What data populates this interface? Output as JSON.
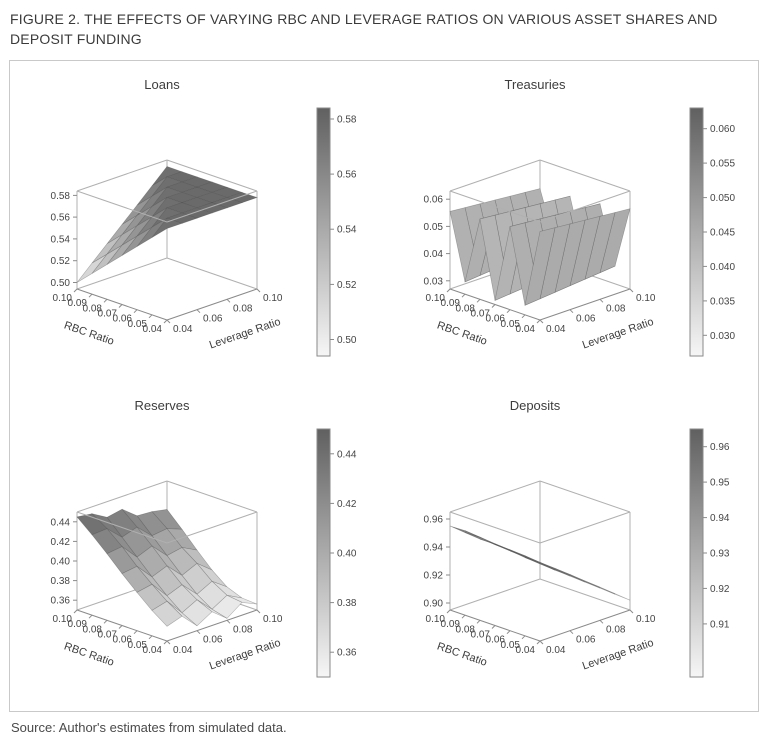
{
  "figure": {
    "title_line1": "FIGURE 2. THE EFFECTS OF VARYING RBC AND LEVERAGE RATIOS ON VARIOUS ASSET SHARES AND",
    "title_line2": "DEPOSIT FUNDING",
    "source": "Source: Author's estimates from simulated data."
  },
  "chart_data": [
    {
      "type": "surface3d",
      "title": "Loans",
      "xlabel": "RBC Ratio",
      "ylabel": "Leverage Ratio",
      "xticks": [
        0.04,
        0.05,
        0.06,
        0.07,
        0.08,
        0.09,
        0.1
      ],
      "yticks": [
        0.04,
        0.06,
        0.08,
        0.1
      ],
      "xlim": [
        0.04,
        0.1
      ],
      "ylim": [
        0.04,
        0.1
      ],
      "zlim": [
        0.494,
        0.584
      ],
      "zticks": [
        0.5,
        0.52,
        0.54,
        0.56,
        0.58
      ],
      "ztick_decimals": 2,
      "colorbar_ticks": [
        0.5,
        0.52,
        0.54,
        0.56,
        0.58
      ],
      "colorbar_decimals": 2,
      "x_rbc": [
        0.04,
        0.05,
        0.06,
        0.07,
        0.08,
        0.09,
        0.1
      ],
      "y_leverage": [
        0.04,
        0.05,
        0.06,
        0.07,
        0.08,
        0.09,
        0.1
      ],
      "z": [
        [
          0.578,
          0.578,
          0.578,
          0.578,
          0.578,
          0.578,
          0.578
        ],
        [
          0.565,
          0.578,
          0.578,
          0.578,
          0.578,
          0.578,
          0.578
        ],
        [
          0.552,
          0.565,
          0.578,
          0.578,
          0.578,
          0.578,
          0.578
        ],
        [
          0.539,
          0.552,
          0.565,
          0.578,
          0.578,
          0.578,
          0.578
        ],
        [
          0.526,
          0.539,
          0.552,
          0.565,
          0.578,
          0.578,
          0.578
        ],
        [
          0.513,
          0.526,
          0.539,
          0.552,
          0.565,
          0.578,
          0.578
        ],
        [
          0.5,
          0.513,
          0.526,
          0.539,
          0.552,
          0.565,
          0.578
        ]
      ]
    },
    {
      "type": "surface3d",
      "title": "Treasuries",
      "xlabel": "RBC Ratio",
      "ylabel": "Leverage Ratio",
      "xticks": [
        0.04,
        0.05,
        0.06,
        0.07,
        0.08,
        0.09,
        0.1
      ],
      "yticks": [
        0.04,
        0.06,
        0.08,
        0.1
      ],
      "xlim": [
        0.04,
        0.1
      ],
      "ylim": [
        0.04,
        0.1
      ],
      "zlim": [
        0.027,
        0.063
      ],
      "zticks": [
        0.03,
        0.04,
        0.05,
        0.06
      ],
      "ztick_decimals": 2,
      "colorbar_ticks": [
        0.03,
        0.035,
        0.04,
        0.045,
        0.05,
        0.055,
        0.06
      ],
      "colorbar_decimals": 3,
      "x_rbc": [
        0.04,
        0.05,
        0.06,
        0.07,
        0.08,
        0.09,
        0.1
      ],
      "y_leverage": [
        0.04,
        0.05,
        0.06,
        0.07,
        0.08,
        0.09,
        0.1
      ],
      "z": [
        [
          0.0595,
          0.059,
          0.0585,
          0.058,
          0.0575,
          0.057,
          0.0565
        ],
        [
          0.0305,
          0.031,
          0.0315,
          0.032,
          0.0325,
          0.033,
          0.0335
        ],
        [
          0.0575,
          0.057,
          0.0565,
          0.056,
          0.0555,
          0.055,
          0.0545
        ],
        [
          0.0285,
          0.029,
          0.0295,
          0.03,
          0.0305,
          0.031,
          0.0315
        ],
        [
          0.0565,
          0.056,
          0.0555,
          0.055,
          0.0545,
          0.054,
          0.0535
        ],
        [
          0.0315,
          0.032,
          0.0325,
          0.033,
          0.0335,
          0.034,
          0.0345
        ],
        [
          0.0555,
          0.055,
          0.0545,
          0.054,
          0.0535,
          0.053,
          0.0525
        ]
      ]
    },
    {
      "type": "surface3d",
      "title": "Reserves",
      "xlabel": "RBC Ratio",
      "ylabel": "Leverage Ratio",
      "xticks": [
        0.04,
        0.05,
        0.06,
        0.07,
        0.08,
        0.09,
        0.1
      ],
      "yticks": [
        0.04,
        0.06,
        0.08,
        0.1
      ],
      "xlim": [
        0.04,
        0.1
      ],
      "ylim": [
        0.04,
        0.1
      ],
      "zlim": [
        0.35,
        0.45
      ],
      "zticks": [
        0.36,
        0.38,
        0.4,
        0.42,
        0.44
      ],
      "ztick_decimals": 2,
      "colorbar_ticks": [
        0.36,
        0.38,
        0.4,
        0.42,
        0.44
      ],
      "colorbar_decimals": 2,
      "x_rbc": [
        0.04,
        0.05,
        0.06,
        0.07,
        0.08,
        0.09,
        0.1
      ],
      "y_leverage": [
        0.04,
        0.05,
        0.06,
        0.07,
        0.08,
        0.09,
        0.1
      ],
      "z": [
        [
          0.365,
          0.37,
          0.355,
          0.364,
          0.352,
          0.363,
          0.356
        ],
        [
          0.376,
          0.38,
          0.363,
          0.371,
          0.356,
          0.365,
          0.357
        ],
        [
          0.389,
          0.392,
          0.375,
          0.381,
          0.366,
          0.374,
          0.363
        ],
        [
          0.403,
          0.405,
          0.389,
          0.395,
          0.38,
          0.387,
          0.375
        ],
        [
          0.418,
          0.42,
          0.404,
          0.41,
          0.395,
          0.398,
          0.39
        ],
        [
          0.432,
          0.433,
          0.419,
          0.424,
          0.41,
          0.412,
          0.406
        ],
        [
          0.445,
          0.443,
          0.434,
          0.437,
          0.425,
          0.424,
          0.421
        ]
      ]
    },
    {
      "type": "surface3d",
      "title": "Deposits",
      "xlabel": "RBC Ratio",
      "ylabel": "Leverage Ratio",
      "xticks": [
        0.04,
        0.05,
        0.06,
        0.07,
        0.08,
        0.09,
        0.1
      ],
      "yticks": [
        0.04,
        0.06,
        0.08,
        0.1
      ],
      "xlim": [
        0.04,
        0.1
      ],
      "ylim": [
        0.04,
        0.1
      ],
      "zlim": [
        0.895,
        0.965
      ],
      "zticks": [
        0.9,
        0.92,
        0.94,
        0.96
      ],
      "ztick_decimals": 2,
      "colorbar_ticks": [
        0.91,
        0.92,
        0.93,
        0.94,
        0.95,
        0.96
      ],
      "colorbar_decimals": 2,
      "x_rbc": [
        0.04,
        0.05,
        0.06,
        0.07,
        0.08,
        0.09,
        0.1
      ],
      "y_leverage": [
        0.04,
        0.05,
        0.06,
        0.07,
        0.08,
        0.09,
        0.1
      ],
      "z": [
        [
          0.95,
          0.942,
          0.934,
          0.926,
          0.918,
          0.91,
          0.902
        ],
        [
          0.951,
          0.943,
          0.935,
          0.927,
          0.919,
          0.911,
          0.903
        ],
        [
          0.952,
          0.944,
          0.936,
          0.928,
          0.92,
          0.912,
          0.904
        ],
        [
          0.953,
          0.945,
          0.937,
          0.929,
          0.921,
          0.913,
          0.904
        ],
        [
          0.953,
          0.946,
          0.938,
          0.93,
          0.921,
          0.913,
          0.905
        ],
        [
          0.954,
          0.947,
          0.938,
          0.93,
          0.922,
          0.914,
          0.905
        ],
        [
          0.955,
          0.948,
          0.939,
          0.931,
          0.923,
          0.914,
          0.906
        ]
      ]
    }
  ]
}
